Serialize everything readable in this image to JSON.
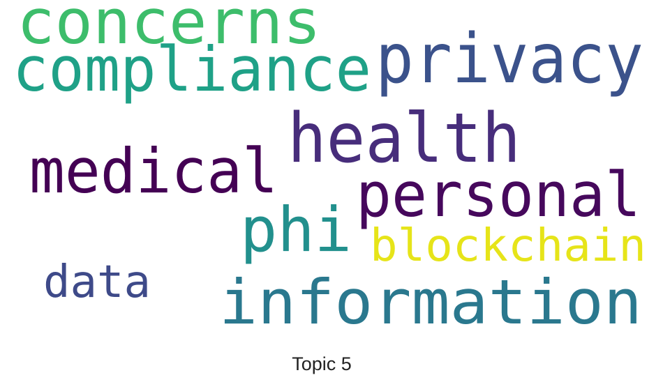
{
  "caption": "Topic 5",
  "cloud": {
    "words": [
      {
        "text": "concerns",
        "color": "#3dbd6b"
      },
      {
        "text": "compliance",
        "color": "#1fa187"
      },
      {
        "text": "privacy",
        "color": "#3b528b"
      },
      {
        "text": "health",
        "color": "#472d7b"
      },
      {
        "text": "medical",
        "color": "#440154"
      },
      {
        "text": "personal",
        "color": "#46085c"
      },
      {
        "text": "phi",
        "color": "#22908d"
      },
      {
        "text": "blockchain",
        "color": "#e6e419"
      },
      {
        "text": "data",
        "color": "#3e4a89"
      },
      {
        "text": "information",
        "color": "#2a788e"
      }
    ]
  }
}
